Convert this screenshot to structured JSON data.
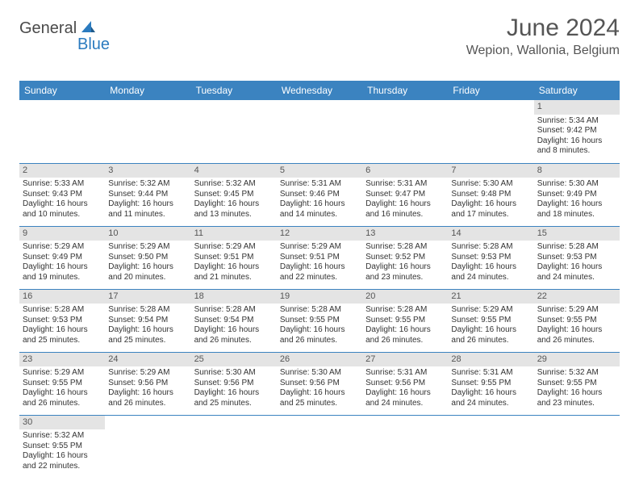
{
  "logo": {
    "part_a": "General",
    "part_b": "Blue"
  },
  "title": "June 2024",
  "location": "Wepion, Wallonia, Belgium",
  "colors": {
    "header_bg": "#3b83c0",
    "header_text": "#ffffff",
    "daynum_bg": "#e4e4e4",
    "cell_border": "#3b83c0",
    "logo_blue": "#2b7bbf",
    "logo_gray": "#4a4a4a",
    "text": "#333333"
  },
  "weekdays": [
    "Sunday",
    "Monday",
    "Tuesday",
    "Wednesday",
    "Thursday",
    "Friday",
    "Saturday"
  ],
  "weeks": [
    [
      null,
      null,
      null,
      null,
      null,
      null,
      {
        "n": "1",
        "sr": "5:34 AM",
        "ss": "9:42 PM",
        "dh": "16",
        "dm": "8"
      }
    ],
    [
      {
        "n": "2",
        "sr": "5:33 AM",
        "ss": "9:43 PM",
        "dh": "16",
        "dm": "10"
      },
      {
        "n": "3",
        "sr": "5:32 AM",
        "ss": "9:44 PM",
        "dh": "16",
        "dm": "11"
      },
      {
        "n": "4",
        "sr": "5:32 AM",
        "ss": "9:45 PM",
        "dh": "16",
        "dm": "13"
      },
      {
        "n": "5",
        "sr": "5:31 AM",
        "ss": "9:46 PM",
        "dh": "16",
        "dm": "14"
      },
      {
        "n": "6",
        "sr": "5:31 AM",
        "ss": "9:47 PM",
        "dh": "16",
        "dm": "16"
      },
      {
        "n": "7",
        "sr": "5:30 AM",
        "ss": "9:48 PM",
        "dh": "16",
        "dm": "17"
      },
      {
        "n": "8",
        "sr": "5:30 AM",
        "ss": "9:49 PM",
        "dh": "16",
        "dm": "18"
      }
    ],
    [
      {
        "n": "9",
        "sr": "5:29 AM",
        "ss": "9:49 PM",
        "dh": "16",
        "dm": "19"
      },
      {
        "n": "10",
        "sr": "5:29 AM",
        "ss": "9:50 PM",
        "dh": "16",
        "dm": "20"
      },
      {
        "n": "11",
        "sr": "5:29 AM",
        "ss": "9:51 PM",
        "dh": "16",
        "dm": "21"
      },
      {
        "n": "12",
        "sr": "5:29 AM",
        "ss": "9:51 PM",
        "dh": "16",
        "dm": "22"
      },
      {
        "n": "13",
        "sr": "5:28 AM",
        "ss": "9:52 PM",
        "dh": "16",
        "dm": "23"
      },
      {
        "n": "14",
        "sr": "5:28 AM",
        "ss": "9:53 PM",
        "dh": "16",
        "dm": "24"
      },
      {
        "n": "15",
        "sr": "5:28 AM",
        "ss": "9:53 PM",
        "dh": "16",
        "dm": "24"
      }
    ],
    [
      {
        "n": "16",
        "sr": "5:28 AM",
        "ss": "9:53 PM",
        "dh": "16",
        "dm": "25"
      },
      {
        "n": "17",
        "sr": "5:28 AM",
        "ss": "9:54 PM",
        "dh": "16",
        "dm": "25"
      },
      {
        "n": "18",
        "sr": "5:28 AM",
        "ss": "9:54 PM",
        "dh": "16",
        "dm": "26"
      },
      {
        "n": "19",
        "sr": "5:28 AM",
        "ss": "9:55 PM",
        "dh": "16",
        "dm": "26"
      },
      {
        "n": "20",
        "sr": "5:28 AM",
        "ss": "9:55 PM",
        "dh": "16",
        "dm": "26"
      },
      {
        "n": "21",
        "sr": "5:29 AM",
        "ss": "9:55 PM",
        "dh": "16",
        "dm": "26"
      },
      {
        "n": "22",
        "sr": "5:29 AM",
        "ss": "9:55 PM",
        "dh": "16",
        "dm": "26"
      }
    ],
    [
      {
        "n": "23",
        "sr": "5:29 AM",
        "ss": "9:55 PM",
        "dh": "16",
        "dm": "26"
      },
      {
        "n": "24",
        "sr": "5:29 AM",
        "ss": "9:56 PM",
        "dh": "16",
        "dm": "26"
      },
      {
        "n": "25",
        "sr": "5:30 AM",
        "ss": "9:56 PM",
        "dh": "16",
        "dm": "25"
      },
      {
        "n": "26",
        "sr": "5:30 AM",
        "ss": "9:56 PM",
        "dh": "16",
        "dm": "25"
      },
      {
        "n": "27",
        "sr": "5:31 AM",
        "ss": "9:56 PM",
        "dh": "16",
        "dm": "24"
      },
      {
        "n": "28",
        "sr": "5:31 AM",
        "ss": "9:55 PM",
        "dh": "16",
        "dm": "24"
      },
      {
        "n": "29",
        "sr": "5:32 AM",
        "ss": "9:55 PM",
        "dh": "16",
        "dm": "23"
      }
    ],
    [
      {
        "n": "30",
        "sr": "5:32 AM",
        "ss": "9:55 PM",
        "dh": "16",
        "dm": "22"
      },
      null,
      null,
      null,
      null,
      null,
      null
    ]
  ],
  "labels": {
    "sunrise": "Sunrise:",
    "sunset": "Sunset:",
    "daylight_prefix": "Daylight:",
    "hours_word": "hours",
    "and_word": "and",
    "minutes_word": "minutes."
  }
}
